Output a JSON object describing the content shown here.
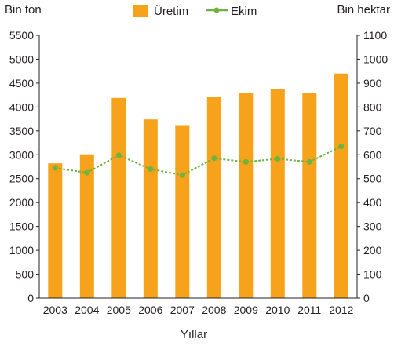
{
  "chart_data": {
    "type": "bar+line",
    "categories": [
      "2003",
      "2004",
      "2005",
      "2006",
      "2007",
      "2008",
      "2009",
      "2010",
      "2011",
      "2012"
    ],
    "xlabel": "Yıllar",
    "series": [
      {
        "name": "Üretim",
        "type": "bar",
        "axis": "left",
        "color": "#f7a21b",
        "values": [
          2820,
          3010,
          4190,
          3740,
          3620,
          4210,
          4300,
          4380,
          4300,
          4700
        ]
      },
      {
        "name": "Ekim",
        "type": "line",
        "axis": "right",
        "color": "#6cb33f",
        "values": [
          545,
          525,
          598,
          540,
          515,
          585,
          570,
          583,
          570,
          635
        ]
      }
    ],
    "y_left": {
      "label": "Bin ton",
      "ylim": [
        0,
        5500
      ],
      "ticks": [
        "0",
        "500",
        "1000",
        "1500",
        "2000",
        "2500",
        "3000",
        "3500",
        "4000",
        "4500",
        "5000",
        "5500"
      ]
    },
    "y_right": {
      "label": "Bin hektar",
      "ylim": [
        0,
        1100
      ],
      "ticks": [
        "0",
        "100",
        "200",
        "300",
        "400",
        "500",
        "600",
        "700",
        "800",
        "900",
        "1000",
        "1100"
      ]
    },
    "legend_position": "top-center",
    "grid": false
  }
}
